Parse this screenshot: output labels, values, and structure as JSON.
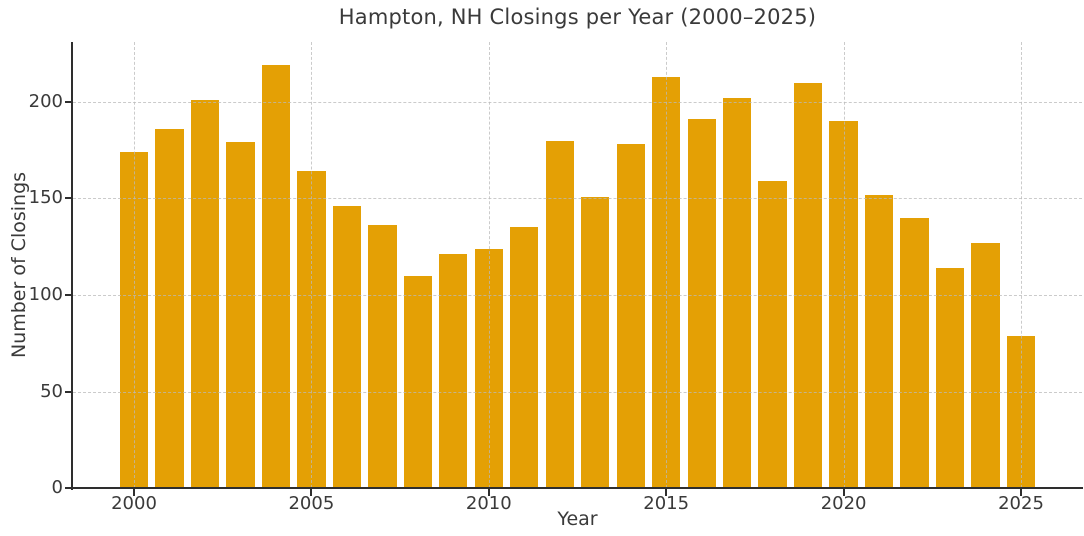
{
  "chart_data": {
    "type": "bar",
    "title": "Hampton, NH Closings per Year (2000–2025)",
    "xlabel": "Year",
    "ylabel": "Number of Closings",
    "categories": [
      2000,
      2001,
      2002,
      2003,
      2004,
      2005,
      2006,
      2007,
      2008,
      2009,
      2010,
      2011,
      2012,
      2013,
      2014,
      2015,
      2016,
      2017,
      2018,
      2019,
      2020,
      2021,
      2022,
      2023,
      2024,
      2025
    ],
    "values": [
      174,
      186,
      201,
      179,
      219,
      164,
      146,
      136,
      110,
      121,
      124,
      135,
      180,
      151,
      178,
      213,
      191,
      202,
      159,
      210,
      190,
      152,
      140,
      114,
      127,
      79
    ],
    "ylim": [
      0,
      231
    ],
    "xlim": [
      1998.28,
      2026.72
    ],
    "yticks": [
      0,
      50,
      100,
      150,
      200
    ],
    "xticks": [
      2000,
      2005,
      2010,
      2015,
      2020,
      2025
    ],
    "bar_width_years": 0.8,
    "grid": true,
    "legend": "none",
    "colors": {
      "bar": "#E4A005",
      "text": "#3a3a3a",
      "spine": "#2e2e2e",
      "grid": "#b9b9b9",
      "background": "#ffffff"
    }
  }
}
